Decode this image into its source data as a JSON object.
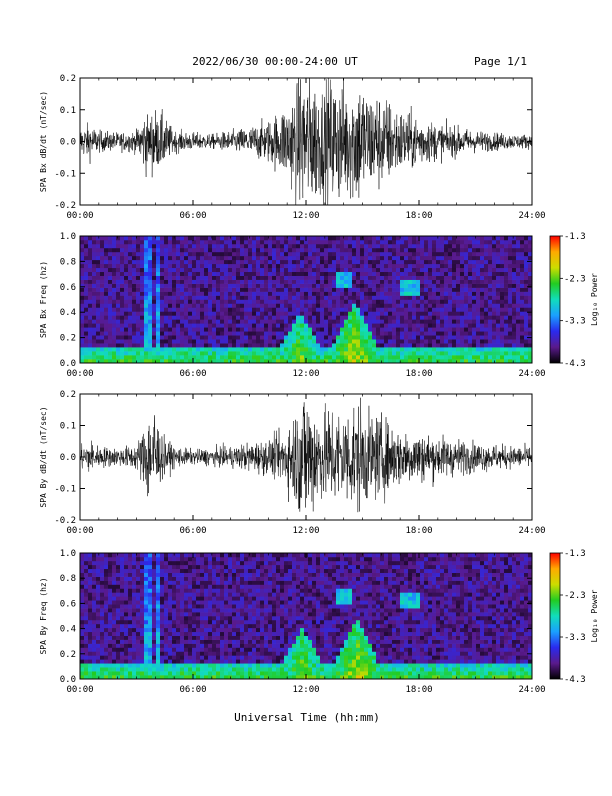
{
  "header": {
    "title": "2022/06/30  00:00-24:00 UT",
    "page": "Page 1/1"
  },
  "xaxis": {
    "label": "Universal Time (hh:mm)",
    "ticks": [
      "00:00",
      "06:00",
      "12:00",
      "18:00",
      "24:00"
    ],
    "tick_hours": [
      0,
      6,
      12,
      18,
      24
    ],
    "range_hours": [
      0,
      24
    ]
  },
  "colorbar": {
    "label": "Log₁₀ Power",
    "ticks": [
      "-1.3",
      "-2.3",
      "-3.3",
      "-4.3"
    ],
    "tick_values": [
      -1.3,
      -2.3,
      -3.3,
      -4.3
    ],
    "range": [
      -4.3,
      -1.3
    ],
    "colormap": [
      "#000000",
      "#5a1a8c",
      "#2a2aee",
      "#1aa0ff",
      "#11ddbb",
      "#22cc22",
      "#ccdd00",
      "#ffaa00",
      "#ff0000"
    ]
  },
  "chart_data": [
    {
      "type": "line",
      "ylabel": "SPA Bx dB/dt (nT/sec)",
      "ylim": [
        -0.2,
        0.2
      ],
      "yticks": [
        "0.2",
        "0.1",
        "0.0",
        "-0.1",
        "-0.2"
      ],
      "ytick_values": [
        0.2,
        0.1,
        0.0,
        -0.1,
        -0.2
      ],
      "color": "#000000",
      "envelope": {
        "hours": [
          0,
          0.5,
          1,
          2,
          3,
          3.5,
          3.7,
          3.9,
          4.1,
          4.3,
          5,
          6,
          7,
          8,
          9,
          10,
          10.5,
          11,
          11.5,
          11.8,
          12,
          12.3,
          12.8,
          13.3,
          13.8,
          14.3,
          14.8,
          15.3,
          15.8,
          16.3,
          17,
          18,
          19,
          20,
          21,
          22,
          23,
          24
        ],
        "amplitude": [
          0.04,
          0.05,
          0.03,
          0.025,
          0.03,
          0.09,
          0.05,
          0.12,
          0.07,
          0.08,
          0.03,
          0.025,
          0.02,
          0.03,
          0.04,
          0.06,
          0.08,
          0.11,
          0.16,
          0.2,
          0.2,
          0.19,
          0.15,
          0.18,
          0.17,
          0.16,
          0.19,
          0.14,
          0.14,
          0.12,
          0.09,
          0.07,
          0.05,
          0.04,
          0.03,
          0.025,
          0.02,
          0.02
        ]
      }
    },
    {
      "type": "heatmap",
      "ylabel": "SPA Bx Freq (hz)",
      "ylim": [
        0.0,
        1.0
      ],
      "yticks": [
        "1.0",
        "0.8",
        "0.6",
        "0.4",
        "0.2",
        "0.0"
      ],
      "ytick_values": [
        1.0,
        0.8,
        0.6,
        0.4,
        0.2,
        0.0
      ],
      "zlim": [
        -4.3,
        -1.3
      ],
      "features": [
        {
          "kind": "background",
          "value": -3.9
        },
        {
          "kind": "lowfreq_band",
          "fmax": 0.12,
          "value": -2.9
        },
        {
          "kind": "vertical_streak",
          "hour": 3.6,
          "value": -3.0
        },
        {
          "kind": "vertical_streak",
          "hour": 4.1,
          "value": -3.0
        },
        {
          "kind": "burst",
          "hour": 11.7,
          "fmax": 0.35,
          "value": -2.2
        },
        {
          "kind": "burst",
          "hour": 14.6,
          "fmax": 0.45,
          "value": -2.0
        },
        {
          "kind": "arc",
          "hour": 14.0,
          "freq": 0.65,
          "value": -3.0
        },
        {
          "kind": "arc",
          "hour": 17.5,
          "freq": 0.6,
          "value": -3.0
        }
      ]
    },
    {
      "type": "line",
      "ylabel": "SPA By dB/dt (nT/sec)",
      "ylim": [
        -0.2,
        0.2
      ],
      "yticks": [
        "0.2",
        "0.1",
        "0.0",
        "-0.1",
        "-0.2"
      ],
      "ytick_values": [
        0.2,
        0.1,
        0.0,
        -0.1,
        -0.2
      ],
      "color": "#000000",
      "envelope": {
        "hours": [
          0,
          0.5,
          1,
          2,
          3,
          3.3,
          3.6,
          3.8,
          4.0,
          4.2,
          4.5,
          5,
          6,
          7,
          8,
          9,
          10,
          10.5,
          11,
          11.5,
          11.8,
          12,
          12.3,
          12.8,
          13.3,
          13.8,
          14.3,
          14.8,
          15.3,
          15.8,
          16.3,
          17,
          18,
          19,
          20,
          21,
          22,
          23,
          24
        ],
        "amplitude": [
          0.03,
          0.05,
          0.03,
          0.025,
          0.035,
          0.07,
          0.14,
          0.09,
          0.2,
          0.08,
          0.05,
          0.03,
          0.02,
          0.025,
          0.03,
          0.04,
          0.05,
          0.06,
          0.09,
          0.14,
          0.2,
          0.2,
          0.17,
          0.12,
          0.15,
          0.13,
          0.14,
          0.16,
          0.12,
          0.12,
          0.1,
          0.08,
          0.07,
          0.06,
          0.05,
          0.04,
          0.035,
          0.03,
          0.03
        ]
      }
    },
    {
      "type": "heatmap",
      "ylabel": "SPA By Freq (hz)",
      "ylim": [
        0.0,
        1.0
      ],
      "yticks": [
        "1.0",
        "0.8",
        "0.6",
        "0.4",
        "0.2",
        "0.0"
      ],
      "ytick_values": [
        1.0,
        0.8,
        0.6,
        0.4,
        0.2,
        0.0
      ],
      "zlim": [
        -4.3,
        -1.3
      ],
      "features": [
        {
          "kind": "background",
          "value": -3.9
        },
        {
          "kind": "lowfreq_band",
          "fmax": 0.12,
          "value": -2.9
        },
        {
          "kind": "vertical_streak",
          "hour": 3.6,
          "value": -3.0
        },
        {
          "kind": "vertical_streak",
          "hour": 4.1,
          "value": -3.0
        },
        {
          "kind": "burst",
          "hour": 11.8,
          "fmax": 0.35,
          "value": -2.2
        },
        {
          "kind": "burst",
          "hour": 14.7,
          "fmax": 0.45,
          "value": -2.0
        },
        {
          "kind": "arc",
          "hour": 14.0,
          "freq": 0.65,
          "value": -3.0
        },
        {
          "kind": "arc",
          "hour": 17.5,
          "freq": 0.62,
          "value": -3.0
        }
      ]
    }
  ]
}
